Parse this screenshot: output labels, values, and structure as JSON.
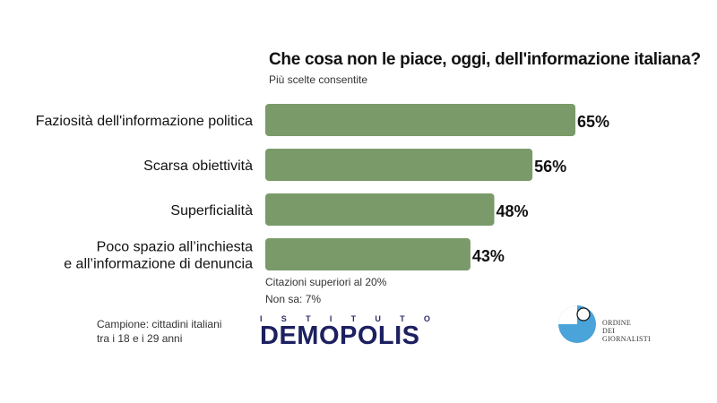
{
  "chart_data": {
    "type": "bar",
    "orientation": "horizontal",
    "title": "Che cosa non le piace, oggi, dell'informazione italiana?",
    "subtitle": "Più scelte consentite",
    "categories": [
      [
        "Faziosità dell'informazione politica"
      ],
      [
        "Scarsa obiettività"
      ],
      [
        "Superficialità"
      ],
      [
        "Poco spazio all’inchiesta",
        "e all’informazione di denuncia"
      ]
    ],
    "values": [
      65,
      56,
      48,
      43
    ],
    "value_labels": [
      "65%",
      "56%",
      "48%",
      "43%"
    ],
    "bar_color": "#7a9a6a"
  },
  "notes": {
    "line1": "Citazioni superiori al 20%",
    "line2": "Non sa: 7%"
  },
  "sample": {
    "line1": "Campione: cittadini italiani",
    "line2": "tra i 18 e i 29 anni"
  },
  "demopolis_logo": {
    "istituto_letters": [
      "I",
      "S",
      "T",
      "I",
      "T",
      "U",
      "T",
      "O"
    ],
    "name": "DEMOPOLIS",
    "color": "#1d2060"
  },
  "odg_logo": {
    "lines": [
      "ORDINE",
      "DEI",
      "GIORNALISTI"
    ],
    "circle_color": "#4aa3d9"
  }
}
